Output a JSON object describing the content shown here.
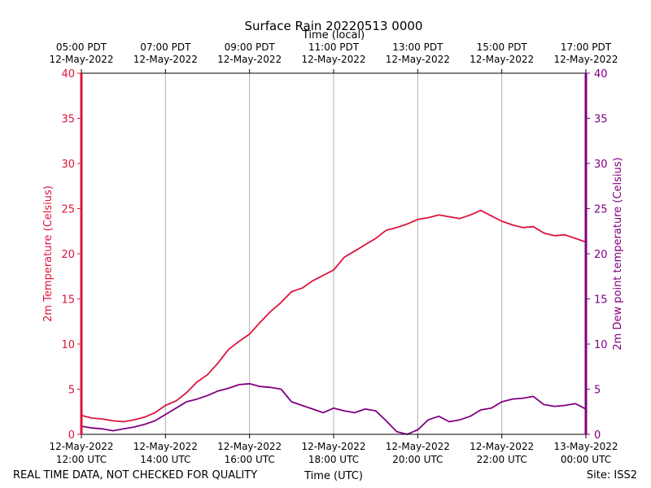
{
  "chart_data": {
    "type": "line",
    "title": "Surface Rain 20220513 0000",
    "xlabel_top": "Time (local)",
    "xlabel_bottom": "Time (UTC)",
    "ylabel_left": "2m Temperature (Celsius)",
    "ylabel_right": "2m Dew point temperature (Celsius)",
    "x_range_utc_hours": [
      12,
      24
    ],
    "ylim": [
      0,
      40
    ],
    "yticks": [
      0,
      5,
      10,
      15,
      20,
      25,
      30,
      35,
      40
    ],
    "ytick_labels": [
      "0",
      "5",
      "10",
      "15",
      "20",
      "25",
      "30",
      "35",
      "40"
    ],
    "xticks_bottom": [
      {
        "x": 12,
        "line1": "12-May-2022",
        "line2": "12:00 UTC"
      },
      {
        "x": 14,
        "line1": "12-May-2022",
        "line2": "14:00 UTC"
      },
      {
        "x": 16,
        "line1": "12-May-2022",
        "line2": "16:00 UTC"
      },
      {
        "x": 18,
        "line1": "12-May-2022",
        "line2": "18:00 UTC"
      },
      {
        "x": 20,
        "line1": "12-May-2022",
        "line2": "20:00 UTC"
      },
      {
        "x": 22,
        "line1": "12-May-2022",
        "line2": "22:00 UTC"
      },
      {
        "x": 24,
        "line1": "13-May-2022",
        "line2": "00:00 UTC"
      }
    ],
    "xticks_top": [
      {
        "x": 12,
        "line1": "05:00 PDT",
        "line2": "12-May-2022"
      },
      {
        "x": 14,
        "line1": "07:00 PDT",
        "line2": "12-May-2022"
      },
      {
        "x": 16,
        "line1": "09:00 PDT",
        "line2": "12-May-2022"
      },
      {
        "x": 18,
        "line1": "11:00 PDT",
        "line2": "12-May-2022"
      },
      {
        "x": 20,
        "line1": "13:00 PDT",
        "line2": "12-May-2022"
      },
      {
        "x": 22,
        "line1": "15:00 PDT",
        "line2": "12-May-2022"
      },
      {
        "x": 24,
        "line1": "17:00 PDT",
        "line2": "12-May-2022"
      }
    ],
    "grid": "vertical",
    "series": [
      {
        "name": "2m Temperature",
        "axis": "left",
        "color": "#dc143c",
        "x": [
          12.0,
          12.25,
          12.5,
          12.75,
          13.0,
          13.25,
          13.5,
          13.75,
          14.0,
          14.25,
          14.5,
          14.75,
          15.0,
          15.25,
          15.5,
          15.75,
          16.0,
          16.25,
          16.5,
          16.75,
          17.0,
          17.25,
          17.5,
          17.75,
          18.0,
          18.25,
          18.5,
          18.75,
          19.0,
          19.25,
          19.5,
          19.75,
          20.0,
          20.25,
          20.5,
          20.75,
          21.0,
          21.25,
          21.5,
          21.75,
          22.0,
          22.25,
          22.5,
          22.75,
          23.0,
          23.25,
          23.5,
          23.75,
          24.0
        ],
        "y": [
          2.1,
          1.8,
          1.7,
          1.5,
          1.4,
          1.6,
          1.9,
          2.4,
          3.2,
          3.7,
          4.6,
          5.8,
          6.6,
          7.9,
          9.4,
          10.3,
          11.1,
          12.4,
          13.6,
          14.6,
          15.8,
          16.2,
          17.0,
          17.6,
          18.2,
          19.6,
          20.3,
          21.0,
          21.7,
          22.6,
          22.9,
          23.3,
          23.8,
          24.0,
          24.3,
          24.1,
          23.9,
          24.3,
          24.8,
          24.2,
          23.6,
          23.2,
          22.9,
          23.0,
          22.3,
          22.0,
          22.1,
          21.7,
          21.3
        ]
      },
      {
        "name": "2m Dew point temperature",
        "axis": "right",
        "color": "#800080",
        "x": [
          12.0,
          12.25,
          12.5,
          12.75,
          13.0,
          13.25,
          13.5,
          13.75,
          14.0,
          14.25,
          14.5,
          14.75,
          15.0,
          15.25,
          15.5,
          15.75,
          16.0,
          16.25,
          16.5,
          16.75,
          17.0,
          17.25,
          17.5,
          17.75,
          18.0,
          18.25,
          18.5,
          18.75,
          19.0,
          19.25,
          19.5,
          19.75,
          20.0,
          20.25,
          20.5,
          20.75,
          21.0,
          21.25,
          21.5,
          21.75,
          22.0,
          22.25,
          22.5,
          22.75,
          23.0,
          23.25,
          23.5,
          23.75,
          24.0
        ],
        "y": [
          0.9,
          0.7,
          0.6,
          0.4,
          0.6,
          0.8,
          1.1,
          1.5,
          2.2,
          2.9,
          3.6,
          3.9,
          4.3,
          4.8,
          5.1,
          5.5,
          5.6,
          5.3,
          5.2,
          5.0,
          3.6,
          3.2,
          2.8,
          2.4,
          2.9,
          2.6,
          2.4,
          2.8,
          2.6,
          1.5,
          0.3,
          0.0,
          0.5,
          1.6,
          2.0,
          1.4,
          1.6,
          2.0,
          2.7,
          2.9,
          3.6,
          3.9,
          4.0,
          4.2,
          3.3,
          3.1,
          3.2,
          3.4,
          2.8
        ]
      }
    ]
  },
  "footer": {
    "left_note": "REAL TIME DATA, NOT CHECKED FOR QUALITY",
    "site": "Site: ISS2"
  },
  "colors": {
    "temperature": "#dc143c",
    "dewpoint": "#800080",
    "grid": "#b0b0b0",
    "axis": "#000000"
  }
}
